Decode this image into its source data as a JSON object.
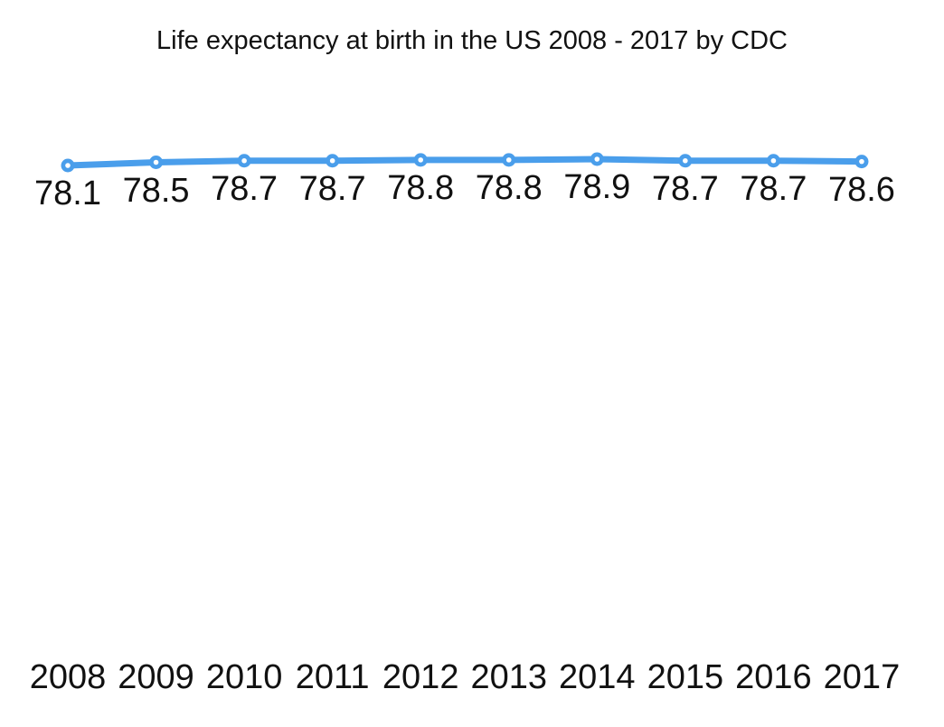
{
  "chart_data": {
    "type": "line",
    "title": "Life expectancy at birth in the US 2008 - 2017 by CDC",
    "categories": [
      "2008",
      "2009",
      "2010",
      "2011",
      "2012",
      "2013",
      "2014",
      "2015",
      "2016",
      "2017"
    ],
    "values": [
      78.1,
      78.5,
      78.7,
      78.7,
      78.8,
      78.8,
      78.9,
      78.7,
      78.7,
      78.6
    ],
    "data_labels": [
      "78.1",
      "78.5",
      "78.7",
      "78.7",
      "78.8",
      "78.8",
      "78.9",
      "78.7",
      "78.7",
      "78.6"
    ],
    "xlabel": "",
    "ylabel": "",
    "legend_position": "none",
    "grid": false,
    "axes_visible": false,
    "data_labels_visible": true,
    "line_color": "#4A9EEB",
    "marker_style": "circle-with-white-center",
    "text_color": "#111111",
    "background_color": "#FFFFFF"
  }
}
